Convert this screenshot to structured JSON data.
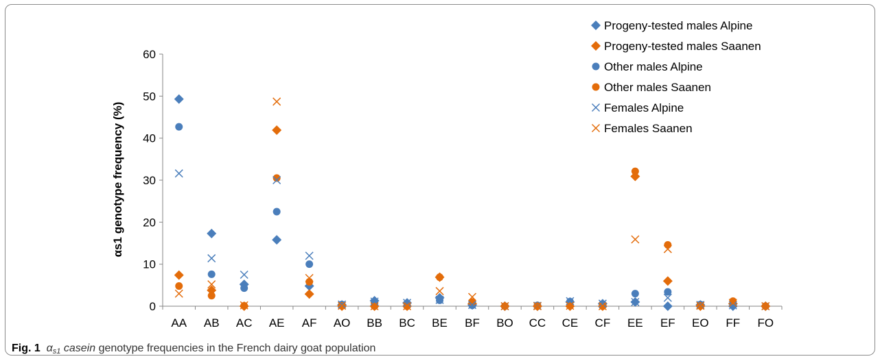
{
  "chart_data": {
    "type": "scatter",
    "ylabel": "αs1 genotype frequency (%)",
    "xlabel": "",
    "ylim": [
      0,
      60
    ],
    "yticks": [
      0,
      10,
      20,
      30,
      40,
      50,
      60
    ],
    "grid": false,
    "legend_position": "top-right",
    "categories": [
      "AA",
      "AB",
      "AC",
      "AE",
      "AF",
      "AO",
      "BB",
      "BC",
      "BE",
      "BF",
      "BO",
      "CC",
      "CE",
      "CF",
      "EE",
      "EF",
      "EO",
      "FF",
      "FO"
    ],
    "series": [
      {
        "name": "Progeny-tested males Alpine",
        "marker": "diamond",
        "color": "#4a7ebb",
        "values": [
          49.3,
          17.3,
          5.2,
          15.8,
          4.8,
          0.3,
          1.3,
          0.8,
          2,
          0.3,
          0,
          0,
          1,
          0.6,
          1,
          0,
          0.3,
          0,
          0
        ]
      },
      {
        "name": "Progeny-tested males Saanen",
        "marker": "diamond",
        "color": "#e36c0a",
        "values": [
          7.4,
          3.8,
          0,
          41.9,
          2.9,
          0,
          0,
          0,
          6.9,
          0.6,
          0,
          0,
          0,
          0,
          30.9,
          6,
          0,
          0.6,
          0
        ]
      },
      {
        "name": "Other males Alpine",
        "marker": "circle",
        "color": "#4a7ebb",
        "values": [
          42.7,
          7.6,
          4.3,
          22.5,
          10,
          0.4,
          0.8,
          0.7,
          1.4,
          0.2,
          0,
          0.2,
          1.1,
          0.5,
          3,
          3.4,
          0.4,
          0.2,
          0
        ]
      },
      {
        "name": "Other males Saanen",
        "marker": "circle",
        "color": "#e36c0a",
        "values": [
          4.8,
          2.5,
          0.1,
          30.5,
          5.8,
          0.1,
          0,
          0,
          6.9,
          1,
          0,
          0,
          0.1,
          0,
          32.1,
          14.6,
          0.1,
          1.2,
          0
        ]
      },
      {
        "name": "Females Alpine",
        "marker": "x",
        "color": "#4a7ebb",
        "values": [
          31.6,
          11.4,
          7.5,
          30,
          12,
          0.4,
          1.1,
          0.8,
          1.5,
          0.3,
          0,
          0.1,
          1.2,
          0.6,
          1,
          2,
          0.3,
          0.2,
          0
        ]
      },
      {
        "name": "Females Saanen",
        "marker": "x",
        "color": "#e36c0a",
        "values": [
          3,
          5.2,
          0.2,
          48.7,
          6.7,
          0.1,
          0,
          0,
          3.6,
          2.2,
          0,
          0,
          0.1,
          0,
          15.9,
          13.6,
          0.1,
          0.8,
          0
        ]
      }
    ]
  },
  "caption": {
    "fig_label": "Fig. 1",
    "symbol": "α",
    "subscript": "s1",
    "italic_word": "casein",
    "rest": "genotype frequencies in the French dairy goat population"
  }
}
